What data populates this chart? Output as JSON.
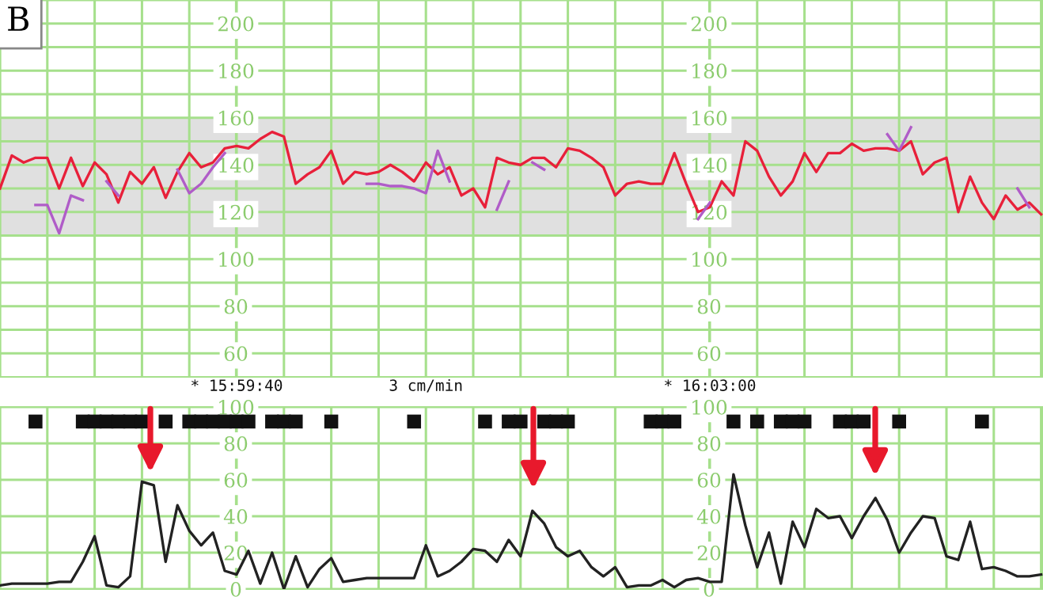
{
  "chart_data": [
    {
      "type": "line",
      "title": "B",
      "categories": [
        null,
        null,
        null,
        null,
        null,
        null,
        null,
        null,
        null,
        null,
        null,
        null,
        null,
        null,
        null,
        null,
        null,
        null,
        null,
        null,
        "* 15:59:40",
        null,
        null,
        null,
        null,
        null,
        null,
        null,
        null,
        null,
        null,
        null,
        null,
        null,
        null,
        null,
        "3 cm/min",
        null,
        null,
        null,
        null,
        null,
        null,
        null,
        null,
        null,
        null,
        null,
        null,
        null,
        null,
        null,
        null,
        null,
        null,
        null,
        null,
        null,
        null,
        null,
        "* 16:03:00",
        null,
        null,
        null,
        null,
        null,
        null,
        null,
        null,
        null,
        null,
        null,
        null,
        null,
        null,
        null,
        null,
        null,
        null,
        null,
        null,
        null,
        null,
        null,
        null,
        null,
        null,
        null,
        null
      ],
      "series": [
        {
          "color": "#e8203a",
          "values": [
            130,
            144,
            141,
            143,
            143,
            130,
            143,
            131,
            141,
            136,
            124,
            137,
            132,
            139,
            126,
            137,
            145,
            139,
            141,
            147,
            148,
            147,
            151,
            154,
            152,
            132,
            136,
            139,
            146,
            132,
            137,
            136,
            137,
            140,
            137,
            133,
            141,
            136,
            139,
            127,
            130,
            122,
            143,
            141,
            140,
            143,
            143,
            139,
            147,
            146,
            143,
            139,
            127,
            132,
            133,
            132,
            132,
            145,
            132,
            120,
            122,
            133,
            127,
            150,
            146,
            135,
            127,
            133,
            145,
            137,
            145,
            145,
            149,
            146,
            147,
            147,
            146,
            150,
            136,
            141,
            143,
            120,
            135,
            124,
            117,
            127,
            121,
            124,
            119
          ]
        },
        {
          "color": "#b05cc8",
          "values": [
            null,
            null,
            null,
            123,
            123,
            111,
            127,
            125,
            null,
            133,
            127,
            null,
            null,
            null,
            null,
            138,
            128,
            132,
            139,
            145,
            null,
            null,
            null,
            null,
            null,
            null,
            null,
            null,
            null,
            null,
            null,
            132,
            132,
            131,
            131,
            130,
            128,
            146,
            133,
            null,
            null,
            null,
            121,
            133,
            null,
            141,
            138,
            null,
            null,
            null,
            null,
            null,
            null,
            null,
            null,
            null,
            null,
            null,
            null,
            117,
            124,
            null,
            null,
            null,
            null,
            null,
            null,
            null,
            null,
            null,
            null,
            null,
            null,
            null,
            null,
            153,
            146,
            156,
            null,
            null,
            null,
            null,
            null,
            null,
            null,
            null,
            130,
            122,
            null
          ]
        }
      ],
      "ylim": [
        50,
        210
      ],
      "yticks": [
        60,
        {
          "value": 70,
          "label": null
        },
        80,
        {
          "value": 90,
          "label": null
        },
        100,
        {
          "value": 110,
          "label": null
        },
        120,
        {
          "value": 130,
          "label": null
        },
        140,
        {
          "value": 150,
          "label": null
        },
        160,
        {
          "value": 170,
          "label": null
        },
        180,
        {
          "value": 190,
          "label": null
        },
        200,
        {
          "value": 210,
          "label": null
        }
      ],
      "y2lim": [
        50,
        210
      ],
      "y2ticks": [
        60,
        80,
        100,
        120,
        140,
        160,
        180,
        200
      ],
      "bands": [
        {
          "axis": "y",
          "from": 110,
          "to": 160,
          "color": "#e0e0e0"
        }
      ],
      "grid": true
    },
    {
      "type": "line",
      "categories": [
        null,
        null,
        null,
        null,
        null,
        null,
        null,
        null,
        null,
        null,
        null,
        null,
        null,
        null,
        null,
        null,
        null,
        null,
        null,
        null,
        null,
        null,
        null,
        null,
        null,
        null,
        null,
        null,
        null,
        null,
        null,
        null,
        null,
        null,
        null,
        null,
        null,
        null,
        null,
        null,
        null,
        null,
        null,
        null,
        null,
        null,
        null,
        null,
        null,
        null,
        null,
        null,
        null,
        null,
        null,
        null,
        null,
        null,
        null,
        null,
        null,
        null,
        null,
        null,
        null,
        null,
        null,
        null,
        null,
        null,
        null,
        null,
        null,
        null,
        null,
        null,
        null,
        null,
        null,
        null,
        null,
        null,
        null,
        null,
        null,
        null,
        null,
        null,
        null
      ],
      "series": [
        {
          "color": "#222222",
          "values": [
            2,
            3,
            3,
            3,
            3,
            4,
            4,
            15,
            29,
            2,
            1,
            7,
            59,
            57,
            15,
            46,
            32,
            24,
            31,
            10,
            8,
            21,
            3,
            20,
            0,
            18,
            1,
            11,
            17,
            4,
            5,
            6,
            6,
            6,
            6,
            6,
            24,
            7,
            10,
            15,
            22,
            21,
            15,
            27,
            18,
            43,
            36,
            23,
            18,
            21,
            12,
            7,
            12,
            1,
            2,
            2,
            5,
            1,
            5,
            6,
            4,
            4,
            63,
            35,
            12,
            31,
            3,
            37,
            23,
            44,
            39,
            40,
            28,
            40,
            50,
            38,
            20,
            31,
            40,
            39,
            18,
            16,
            37,
            11,
            12,
            10,
            7,
            7,
            8
          ]
        },
        {
          "type": "scatter",
          "marker": "square",
          "color": "#111111",
          "values": [
            null,
            null,
            null,
            92,
            null,
            null,
            null,
            92,
            92,
            92,
            92,
            92,
            92,
            null,
            92,
            null,
            92,
            92,
            92,
            92,
            92,
            92,
            null,
            92,
            92,
            92,
            null,
            null,
            92,
            null,
            null,
            null,
            null,
            null,
            null,
            92,
            null,
            null,
            null,
            null,
            null,
            92,
            null,
            92,
            92,
            null,
            92,
            92,
            92,
            null,
            null,
            null,
            null,
            null,
            null,
            92,
            92,
            92,
            null,
            null,
            null,
            null,
            92,
            null,
            92,
            null,
            92,
            92,
            92,
            null,
            null,
            92,
            92,
            92,
            null,
            null,
            92,
            null,
            null,
            null,
            null,
            null,
            null,
            92,
            null,
            null,
            null,
            null,
            null
          ]
        }
      ],
      "ylim": [
        0,
        100
      ],
      "yticks": [
        0,
        20,
        40,
        60,
        80,
        100
      ],
      "y2lim": [
        0,
        100
      ],
      "y2ticks": [
        0,
        20,
        40,
        60,
        80,
        100
      ],
      "tick_labels": "y",
      "grid": true
    }
  ]
}
